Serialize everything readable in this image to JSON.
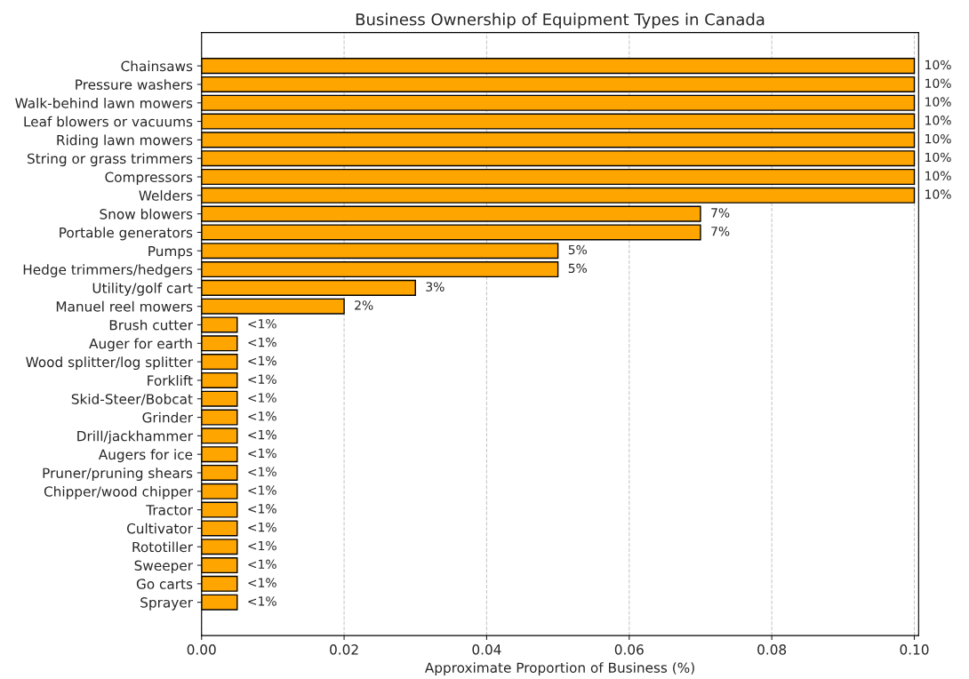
{
  "chart_data": {
    "type": "bar",
    "orientation": "horizontal",
    "title": "Business Ownership of Equipment Types in Canada",
    "xlabel": "Approximate Proportion of Business (%)",
    "categories": [
      "Chainsaws",
      "Pressure washers",
      "Walk-behind lawn mowers",
      "Leaf blowers or vacuums",
      "Riding lawn mowers",
      "String or grass trimmers",
      "Compressors",
      "Welders",
      "Snow blowers",
      "Portable generators",
      "Pumps",
      "Hedge trimmers/hedgers",
      "Utility/golf cart",
      "Manuel reel mowers",
      "Brush cutter",
      "Auger for earth",
      "Wood splitter/log splitter",
      "Forklift",
      "Skid-Steer/Bobcat",
      "Grinder",
      "Drill/jackhammer",
      "Augers for ice",
      "Pruner/pruning shears",
      "Chipper/wood chipper",
      "Tractor",
      "Cultivator",
      "Rototiller",
      "Sweeper",
      "Go carts",
      "Sprayer"
    ],
    "values": [
      0.1,
      0.1,
      0.1,
      0.1,
      0.1,
      0.1,
      0.1,
      0.1,
      0.07,
      0.07,
      0.05,
      0.05,
      0.03,
      0.02,
      0.005,
      0.005,
      0.005,
      0.005,
      0.005,
      0.005,
      0.005,
      0.005,
      0.005,
      0.005,
      0.005,
      0.005,
      0.005,
      0.005,
      0.005,
      0.005
    ],
    "value_labels": [
      "10%",
      "10%",
      "10%",
      "10%",
      "10%",
      "10%",
      "10%",
      "10%",
      "7%",
      "7%",
      "5%",
      "5%",
      "3%",
      "2%",
      "<1%",
      "<1%",
      "<1%",
      "<1%",
      "<1%",
      "<1%",
      "<1%",
      "<1%",
      "<1%",
      "<1%",
      "<1%",
      "<1%",
      "<1%",
      "<1%",
      "<1%",
      "<1%"
    ],
    "color": "#ffa500",
    "xlim": [
      0,
      0.1006
    ],
    "xticks": [
      {
        "value": 0,
        "label": "0.00"
      },
      {
        "value": 0.02,
        "label": "0.02"
      },
      {
        "value": 0.04,
        "label": "0.04"
      },
      {
        "value": 0.06,
        "label": "0.06"
      },
      {
        "value": 0.08,
        "label": "0.08"
      },
      {
        "value": 0.1,
        "label": "0.10"
      }
    ],
    "grid": "x",
    "line_style": "dashed"
  }
}
